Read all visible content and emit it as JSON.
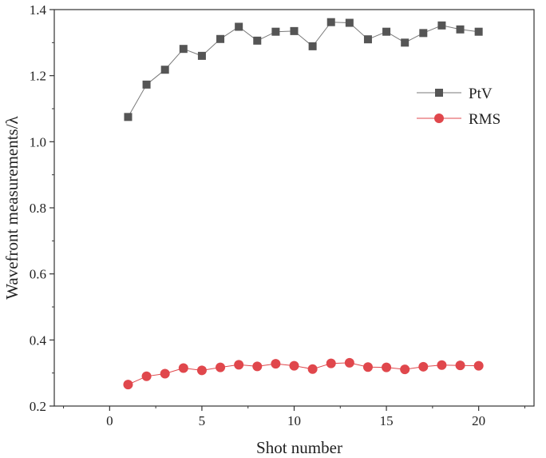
{
  "chart_data": {
    "type": "line",
    "title": "",
    "xlabel": "Shot number",
    "ylabel": "Wavefront measurements/λ",
    "xlim": [
      -3,
      23
    ],
    "ylim": [
      0.2,
      1.4
    ],
    "xticks": [
      0,
      5,
      10,
      15,
      20
    ],
    "xtick_labels": [
      "0",
      "5",
      "10",
      "15",
      "20"
    ],
    "yticks": [
      0.2,
      0.4,
      0.6,
      0.8,
      1.0,
      1.2,
      1.4
    ],
    "ytick_labels": [
      "0.2",
      "0.4",
      "0.6",
      "0.8",
      "1.0",
      "1.2",
      "1.4"
    ],
    "grid": false,
    "legend_position": "right",
    "x": [
      1,
      2,
      3,
      4,
      5,
      6,
      7,
      8,
      9,
      10,
      11,
      12,
      13,
      14,
      15,
      16,
      17,
      18,
      19,
      20
    ],
    "series": [
      {
        "name": "PtV",
        "marker": "square",
        "marker_color": "#555555",
        "line_color": "#7a7a7a",
        "values": [
          1.075,
          1.173,
          1.218,
          1.281,
          1.26,
          1.311,
          1.348,
          1.306,
          1.333,
          1.335,
          1.289,
          1.362,
          1.36,
          1.31,
          1.333,
          1.3,
          1.329,
          1.352,
          1.34,
          1.333
        ]
      },
      {
        "name": "RMS",
        "marker": "circle",
        "marker_color": "#e0474c",
        "line_color": "#e0474c",
        "values": [
          0.265,
          0.29,
          0.298,
          0.315,
          0.308,
          0.317,
          0.325,
          0.32,
          0.328,
          0.322,
          0.312,
          0.329,
          0.331,
          0.318,
          0.317,
          0.311,
          0.319,
          0.324,
          0.323,
          0.322
        ]
      }
    ]
  }
}
